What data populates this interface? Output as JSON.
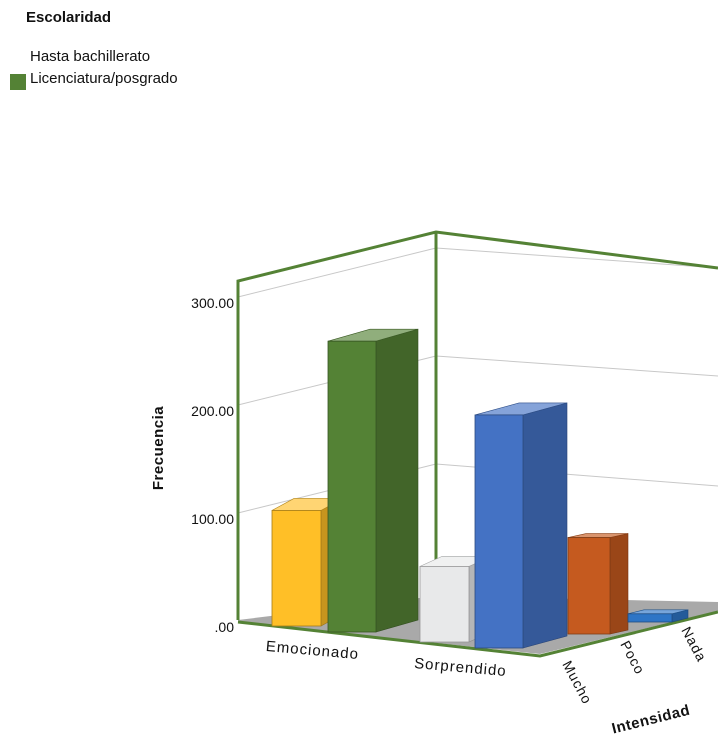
{
  "legend": {
    "title": "Escolaridad",
    "items": [
      {
        "label": "Hasta bachillerato",
        "color": ""
      },
      {
        "label": "Licenciatura/posgrado",
        "color": "#548235"
      }
    ]
  },
  "chart_data": {
    "type": "bar",
    "title": "",
    "xlabel": "",
    "ylabel": "Frecuencia",
    "zlabel": "Intensidad",
    "ylim": [
      0,
      300
    ],
    "y_ticks": [
      ".00",
      "100.00",
      "200.00",
      "300.00"
    ],
    "categories": [
      "Emocionado",
      "Sorprendido"
    ],
    "depth_categories": [
      "Mucho",
      "Poco",
      "Nada"
    ],
    "legend_placement": "top-left",
    "grid": true,
    "series": [
      {
        "name": "Hasta bachillerato",
        "intensity": "Mucho",
        "values": [
          107,
          70
        ],
        "colors": [
          "#ffbf27",
          "#e8e9ea"
        ]
      },
      {
        "name": "Licenciatura/posgrado",
        "intensity": "Mucho",
        "values": [
          272,
          218
        ],
        "colors": [
          "#548235",
          "#4472c4"
        ]
      }
    ],
    "visible_back_bars": [
      {
        "intensity": "Poco",
        "value": 94,
        "color": "#c55a1f"
      },
      {
        "intensity": "Nada",
        "value": 8,
        "color": "#2e75c6"
      }
    ],
    "frame_color": "#548235"
  }
}
